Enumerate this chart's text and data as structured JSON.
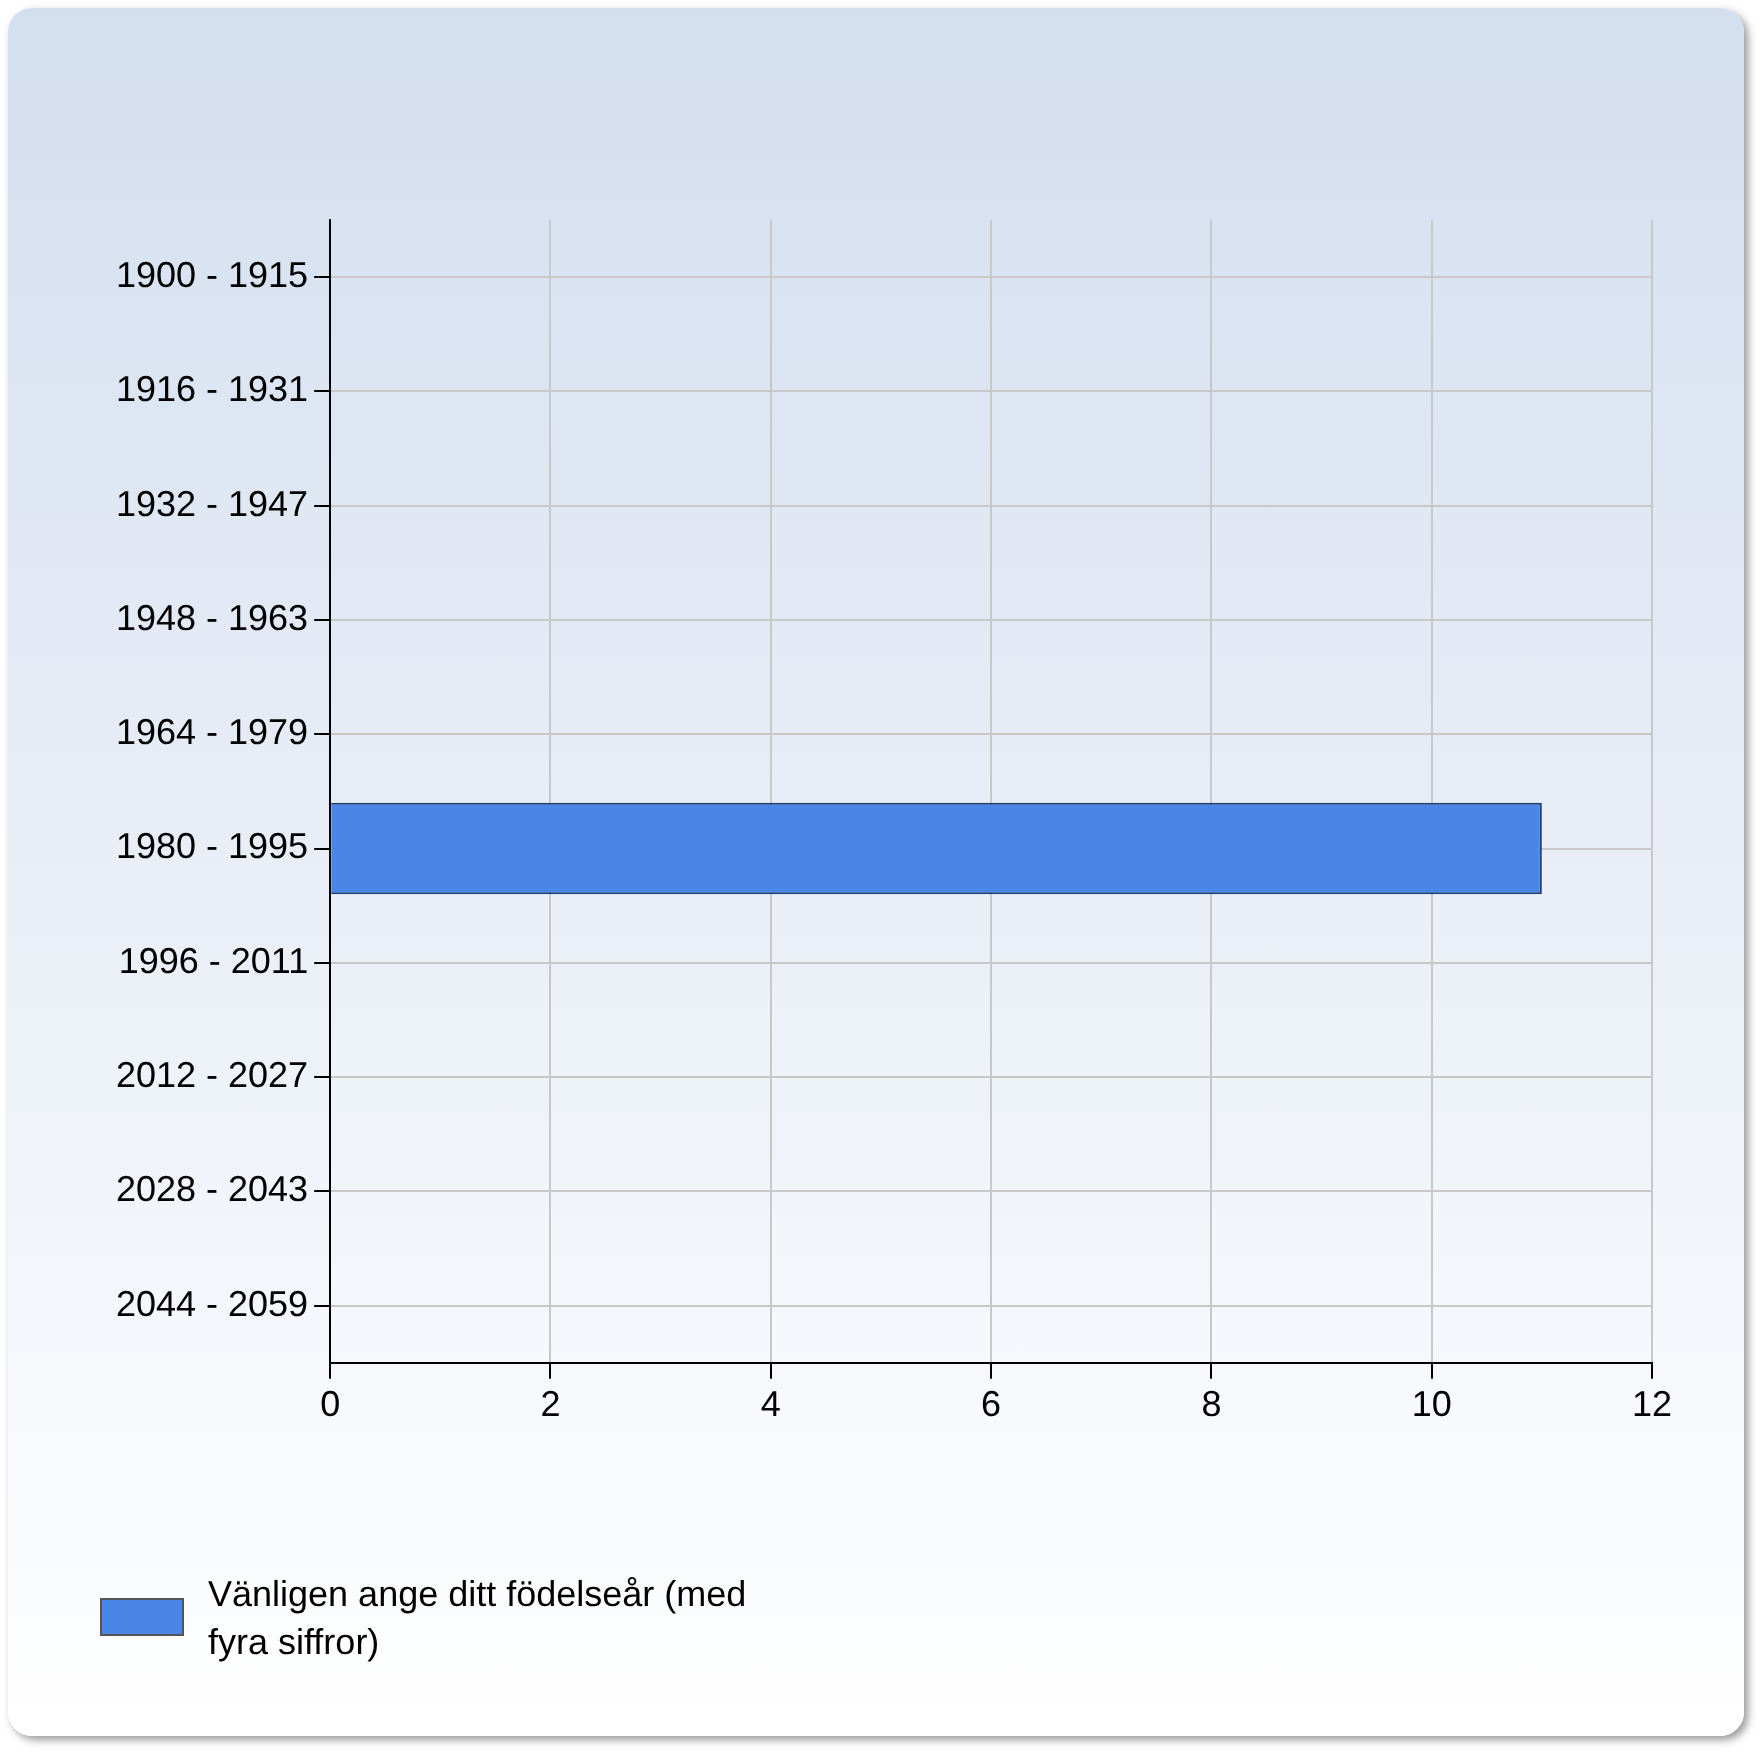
{
  "chart_data": {
    "type": "bar",
    "orientation": "horizontal",
    "categories": [
      "1900 - 1915",
      "1916 - 1931",
      "1932 - 1947",
      "1948 - 1963",
      "1964 - 1979",
      "1980 - 1995",
      "1996 - 2011",
      "2012 - 2027",
      "2028 - 2043",
      "2044 - 2059"
    ],
    "series": [
      {
        "name": "Vänligen ange ditt födelseår (med fyra siffror)",
        "color": "#4a86e8",
        "values": [
          0,
          0,
          0,
          0,
          0,
          11,
          0,
          0,
          0,
          0
        ]
      }
    ],
    "xlim": [
      0,
      12
    ],
    "xticks": [
      0,
      2,
      4,
      6,
      8,
      10,
      12
    ],
    "grid": true,
    "legend": "bottom left"
  }
}
